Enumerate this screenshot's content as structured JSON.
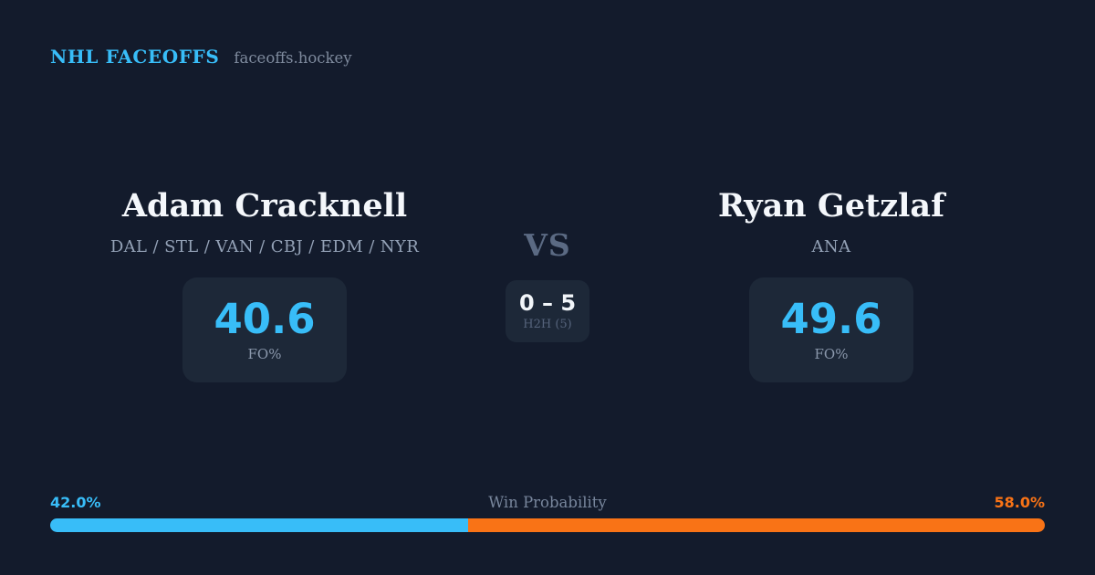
{
  "brand": {
    "title": "NHL FACEOFFS",
    "domain": "faceoffs.hockey"
  },
  "players": {
    "left": {
      "name": "Adam Cracknell",
      "teams": "DAL / STL / VAN / CBJ / EDM / NYR",
      "stat_value": "40.6",
      "stat_label": "FO%"
    },
    "right": {
      "name": "Ryan Getzlaf",
      "teams": "ANA",
      "stat_value": "49.6",
      "stat_label": "FO%"
    }
  },
  "matchup": {
    "vs_label": "VS",
    "h2h_score": "0 – 5",
    "h2h_label": "H2H (5)"
  },
  "win_probability": {
    "label": "Win Probability",
    "left_label": "42.0%",
    "right_label": "58.0%",
    "left_value": 42.0,
    "right_value": 58.0
  },
  "colors": {
    "background": "#131b2c",
    "card": "#1d2838",
    "accent_blue": "#38bdf8",
    "accent_orange": "#f97316"
  },
  "chart_data": {
    "type": "bar",
    "title": "Win Probability",
    "categories": [
      "Adam Cracknell",
      "Ryan Getzlaf"
    ],
    "values": [
      42.0,
      58.0
    ],
    "unit": "%",
    "colors": [
      "#38bdf8",
      "#f97316"
    ],
    "layout": "single horizontal stacked bar, labels at each end"
  }
}
